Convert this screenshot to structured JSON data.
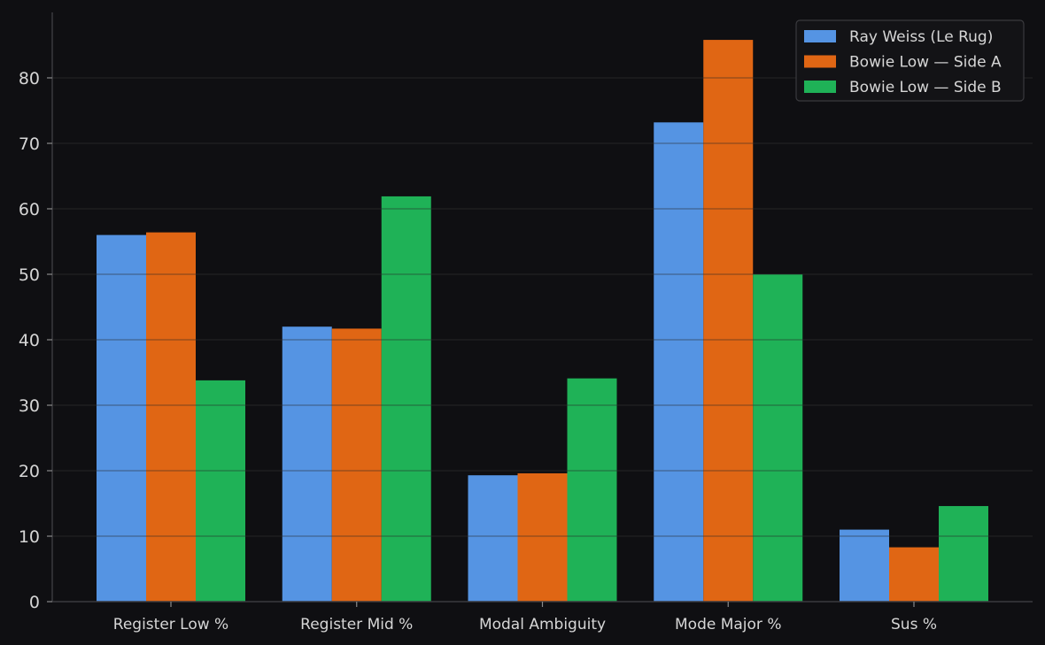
{
  "chart_data": {
    "type": "bar",
    "categories": [
      "Register Low %",
      "Register Mid %",
      "Modal Ambiguity",
      "Mode Major %",
      "Sus %"
    ],
    "series": [
      {
        "name": "Ray Weiss (Le Rug)",
        "color": "#5594e3",
        "values": [
          56.0,
          42.0,
          19.3,
          73.2,
          11.0
        ]
      },
      {
        "name": "Bowie Low — Side A",
        "color": "#e06614",
        "values": [
          56.4,
          41.7,
          19.6,
          85.8,
          8.3
        ]
      },
      {
        "name": "Bowie Low — Side B",
        "color": "#1fb257",
        "values": [
          33.8,
          61.9,
          34.1,
          50.0,
          14.6
        ]
      }
    ],
    "y_ticks": [
      0,
      10,
      20,
      30,
      40,
      50,
      60,
      70,
      80
    ],
    "ylim": [
      0,
      90
    ],
    "grid": true,
    "legend_position": "top-right",
    "title": "",
    "xlabel": "",
    "ylabel": ""
  }
}
